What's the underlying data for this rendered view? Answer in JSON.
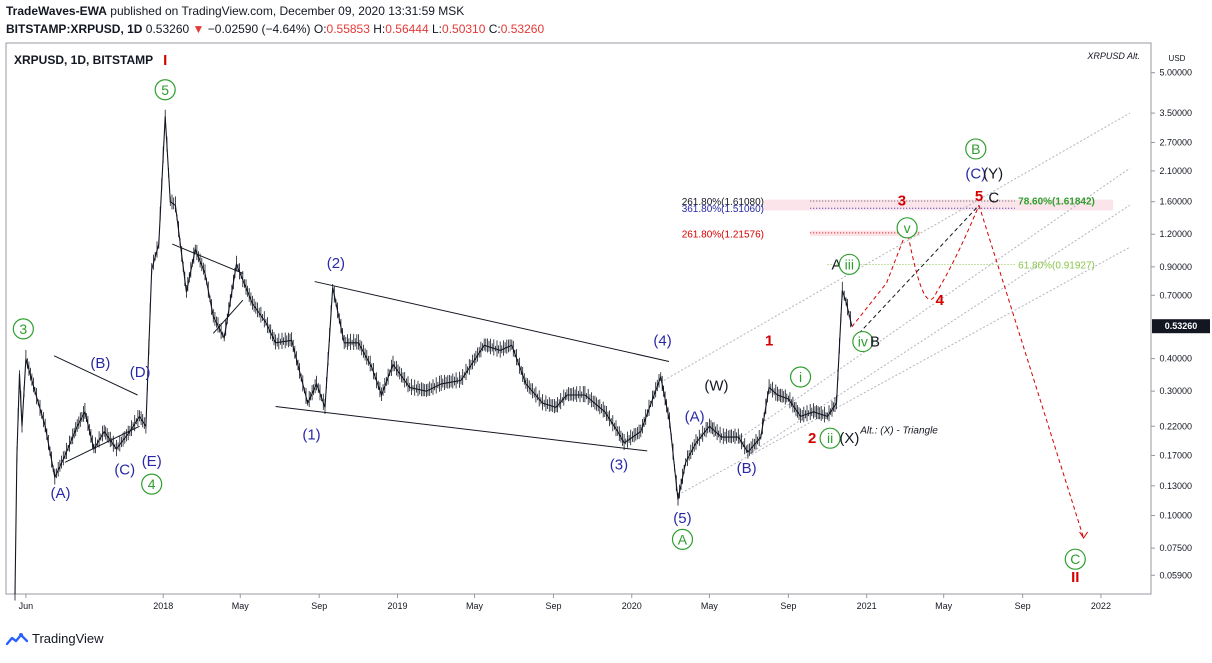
{
  "header": {
    "publisher": "TradeWaves-EWA",
    "published_text": "published on TradingView.com, December 09, 2020 13:31:59 MSK",
    "symbol": "BITSTAMP:XRPUSD, 1D",
    "last": "0.53260",
    "change_arrow": "▼",
    "change": "−0.02590 (−4.64%)",
    "o_label": "O:",
    "o": "0.55853",
    "h_label": "H:",
    "h": "0.56444",
    "l_label": "L:",
    "l": "0.50310",
    "c_label": "C:",
    "c": "0.53260"
  },
  "chart_title": "XRPUSD, 1D, BITSTAMP",
  "watermark": "XRPUSD Alt.",
  "footer_brand": "TradingView",
  "colors": {
    "candles": "#131722",
    "green_label": "#2e9e2e",
    "blue_label": "#2929a8",
    "red_label": "#d50000",
    "black_label": "#131722",
    "price_tag_bg": "#131722",
    "channel": "#b2b5be"
  },
  "chart_data": {
    "type": "candlestick",
    "y_scale": "log",
    "ylim": [
      0.05,
      6.5
    ],
    "y_unit": "USD",
    "y_ticks": [
      "5.00000",
      "3.50000",
      "2.70000",
      "2.10000",
      "1.60000",
      "1.20000",
      "0.90000",
      "0.70000",
      "0.53260",
      "0.40000",
      "0.30000",
      "0.22000",
      "0.17000",
      "0.13000",
      "0.10000",
      "0.07500",
      "0.05900"
    ],
    "x_ticks": [
      "Jun",
      "2018",
      "May",
      "Sep",
      "2019",
      "May",
      "Sep",
      "2020",
      "May",
      "Sep",
      "2021",
      "May",
      "Sep",
      "2022"
    ],
    "last_price": "0.53260",
    "price_path": [
      [
        "2017-05-15",
        0.05
      ],
      [
        "2017-05-18",
        0.17
      ],
      [
        "2017-05-22",
        0.35
      ],
      [
        "2017-05-26",
        0.22
      ],
      [
        "2017-06-01",
        0.4
      ],
      [
        "2017-06-15",
        0.3
      ],
      [
        "2017-07-01",
        0.22
      ],
      [
        "2017-07-16",
        0.14
      ],
      [
        "2017-08-01",
        0.17
      ],
      [
        "2017-08-20",
        0.22
      ],
      [
        "2017-09-01",
        0.25
      ],
      [
        "2017-09-15",
        0.18
      ],
      [
        "2017-10-01",
        0.21
      ],
      [
        "2017-10-20",
        0.18
      ],
      [
        "2017-11-10",
        0.21
      ],
      [
        "2017-11-25",
        0.24
      ],
      [
        "2017-12-05",
        0.22
      ],
      [
        "2017-12-14",
        0.88
      ],
      [
        "2017-12-25",
        1.1
      ],
      [
        "2018-01-01",
        2.4
      ],
      [
        "2018-01-04",
        3.4
      ],
      [
        "2018-01-12",
        1.6
      ],
      [
        "2018-01-20",
        1.55
      ],
      [
        "2018-02-06",
        0.72
      ],
      [
        "2018-02-20",
        1.05
      ],
      [
        "2018-03-07",
        0.85
      ],
      [
        "2018-03-20",
        0.58
      ],
      [
        "2018-04-06",
        0.48
      ],
      [
        "2018-04-25",
        0.92
      ],
      [
        "2018-05-20",
        0.65
      ],
      [
        "2018-06-10",
        0.55
      ],
      [
        "2018-06-25",
        0.46
      ],
      [
        "2018-07-20",
        0.47
      ],
      [
        "2018-08-14",
        0.27
      ],
      [
        "2018-08-28",
        0.32
      ],
      [
        "2018-09-10",
        0.26
      ],
      [
        "2018-09-22",
        0.75
      ],
      [
        "2018-10-10",
        0.46
      ],
      [
        "2018-11-01",
        0.46
      ],
      [
        "2018-11-22",
        0.37
      ],
      [
        "2018-12-07",
        0.29
      ],
      [
        "2018-12-25",
        0.38
      ],
      [
        "2019-01-20",
        0.31
      ],
      [
        "2019-02-15",
        0.3
      ],
      [
        "2019-03-10",
        0.32
      ],
      [
        "2019-04-10",
        0.33
      ],
      [
        "2019-05-16",
        0.45
      ],
      [
        "2019-06-10",
        0.43
      ],
      [
        "2019-06-28",
        0.45
      ],
      [
        "2019-07-20",
        0.32
      ],
      [
        "2019-08-15",
        0.27
      ],
      [
        "2019-09-05",
        0.26
      ],
      [
        "2019-09-22",
        0.29
      ],
      [
        "2019-10-20",
        0.29
      ],
      [
        "2019-11-20",
        0.25
      ],
      [
        "2019-12-10",
        0.21
      ],
      [
        "2019-12-20",
        0.19
      ],
      [
        "2020-01-15",
        0.21
      ],
      [
        "2020-02-15",
        0.34
      ],
      [
        "2020-02-29",
        0.23
      ],
      [
        "2020-03-13",
        0.115
      ],
      [
        "2020-03-25",
        0.16
      ],
      [
        "2020-04-10",
        0.19
      ],
      [
        "2020-05-01",
        0.22
      ],
      [
        "2020-05-20",
        0.2
      ],
      [
        "2020-06-15",
        0.2
      ],
      [
        "2020-06-30",
        0.175
      ],
      [
        "2020-07-20",
        0.2
      ],
      [
        "2020-08-02",
        0.31
      ],
      [
        "2020-08-15",
        0.29
      ],
      [
        "2020-09-01",
        0.28
      ],
      [
        "2020-09-20",
        0.24
      ],
      [
        "2020-10-10",
        0.25
      ],
      [
        "2020-11-01",
        0.24
      ],
      [
        "2020-11-15",
        0.27
      ],
      [
        "2020-11-24",
        0.73
      ],
      [
        "2020-11-30",
        0.66
      ],
      [
        "2020-12-09",
        0.5326
      ]
    ],
    "wave_labels": [
      {
        "text": "I",
        "x": "2018-01-04",
        "y": 5.6,
        "color": "red",
        "style": "plain"
      },
      {
        "text": "5",
        "x": "2018-01-04",
        "y": 4.3,
        "color": "green",
        "style": "circle"
      },
      {
        "text": "3",
        "x": "2017-05-28",
        "y": 0.52,
        "color": "green",
        "style": "circle"
      },
      {
        "text": "(A)",
        "x": "2017-07-25",
        "y": 0.122,
        "color": "blue",
        "style": "plain"
      },
      {
        "text": "(B)",
        "x": "2017-09-25",
        "y": 0.385,
        "color": "blue",
        "style": "plain"
      },
      {
        "text": "(C)",
        "x": "2017-11-02",
        "y": 0.15,
        "color": "blue",
        "style": "plain"
      },
      {
        "text": "(D)",
        "x": "2017-11-26",
        "y": 0.355,
        "color": "blue",
        "style": "plain"
      },
      {
        "text": "(E)",
        "x": "2017-12-14",
        "y": 0.162,
        "color": "blue",
        "style": "plain"
      },
      {
        "text": "4",
        "x": "2017-12-14",
        "y": 0.132,
        "color": "green",
        "style": "circle"
      },
      {
        "text": "(1)",
        "x": "2018-08-20",
        "y": 0.205,
        "color": "blue",
        "style": "plain"
      },
      {
        "text": "(2)",
        "x": "2018-09-27",
        "y": 0.93,
        "color": "blue",
        "style": "plain"
      },
      {
        "text": "(3)",
        "x": "2019-12-12",
        "y": 0.157,
        "color": "blue",
        "style": "plain"
      },
      {
        "text": "(4)",
        "x": "2020-02-18",
        "y": 0.47,
        "color": "blue",
        "style": "plain"
      },
      {
        "text": "(5)",
        "x": "2020-03-20",
        "y": 0.098,
        "color": "blue",
        "style": "plain"
      },
      {
        "text": "A",
        "x": "2020-03-20",
        "y": 0.081,
        "color": "green",
        "style": "circle"
      },
      {
        "text": "(A)",
        "x": "2020-04-08",
        "y": 0.24,
        "color": "blue",
        "style": "plain"
      },
      {
        "text": "(W)",
        "x": "2020-05-12",
        "y": 0.315,
        "color": "black",
        "style": "plain"
      },
      {
        "text": "(B)",
        "x": "2020-06-28",
        "y": 0.152,
        "color": "blue",
        "style": "plain"
      },
      {
        "text": "1",
        "x": "2020-08-02",
        "y": 0.47,
        "color": "red",
        "style": "plain"
      },
      {
        "text": "i",
        "x": "2020-09-20",
        "y": 0.34,
        "color": "green",
        "style": "circle"
      },
      {
        "text": "2",
        "x": "2020-10-08",
        "y": 0.198,
        "color": "red",
        "style": "plain"
      },
      {
        "text": "ii",
        "x": "2020-11-05",
        "y": 0.198,
        "color": "green",
        "style": "circle"
      },
      {
        "text": "(X)",
        "x": "2020-12-05",
        "y": 0.198,
        "color": "black",
        "style": "plain"
      },
      {
        "text": "A",
        "x": "2020-11-15",
        "y": 0.92,
        "color": "black",
        "style": "plain"
      },
      {
        "text": "iii",
        "x": "2020-12-05",
        "y": 0.92,
        "color": "green",
        "style": "circle"
      },
      {
        "text": "iv",
        "x": "2020-12-26",
        "y": 0.465,
        "color": "green",
        "style": "circle"
      },
      {
        "text": "B",
        "x": "2021-01-14",
        "y": 0.465,
        "color": "black",
        "style": "plain"
      },
      {
        "text": "3",
        "x": "2021-02-25",
        "y": 1.62,
        "color": "red",
        "style": "plain"
      },
      {
        "text": "v",
        "x": "2021-03-05",
        "y": 1.27,
        "color": "green",
        "style": "circle"
      },
      {
        "text": "4",
        "x": "2021-04-25",
        "y": 0.67,
        "color": "red",
        "style": "plain"
      },
      {
        "text": "5",
        "x": "2021-06-25",
        "y": 1.68,
        "color": "red",
        "style": "plain"
      },
      {
        "text": "C",
        "x": "2021-07-18",
        "y": 1.66,
        "color": "black",
        "style": "plain"
      },
      {
        "text": "(C)",
        "x": "2021-06-20",
        "y": 2.05,
        "color": "blue",
        "style": "plain"
      },
      {
        "text": "(Y)",
        "x": "2021-07-17",
        "y": 2.05,
        "color": "black",
        "style": "plain"
      },
      {
        "text": "B",
        "x": "2021-06-20",
        "y": 2.55,
        "color": "green",
        "style": "circle"
      },
      {
        "text": "C",
        "x": "2021-11-22",
        "y": 0.068,
        "color": "green",
        "style": "circle"
      },
      {
        "text": "II",
        "x": "2021-11-22",
        "y": 0.058,
        "color": "red",
        "style": "plain"
      }
    ],
    "annotations": [
      {
        "text": "261.80%(1.61080)",
        "x": "2020-07-25",
        "y": 1.61,
        "color": "#131722"
      },
      {
        "text": "361.80%(1.51060)",
        "x": "2020-07-25",
        "y": 1.51,
        "color": "#2929a8"
      },
      {
        "text": "261.80%(1.21576)",
        "x": "2020-07-25",
        "y": 1.21,
        "color": "#d50000"
      },
      {
        "text": "78.60%(1.61842)",
        "x": "2021-08-25",
        "y": 1.62,
        "color": "#2e9e2e"
      },
      {
        "text": "61.80%(0.91927)",
        "x": "2021-08-25",
        "y": 0.919,
        "color": "#8bc34a"
      },
      {
        "text": "Alt.: (X) - Triangle",
        "x": "2020-12-22",
        "y": 0.214,
        "color": "#131722"
      }
    ]
  }
}
